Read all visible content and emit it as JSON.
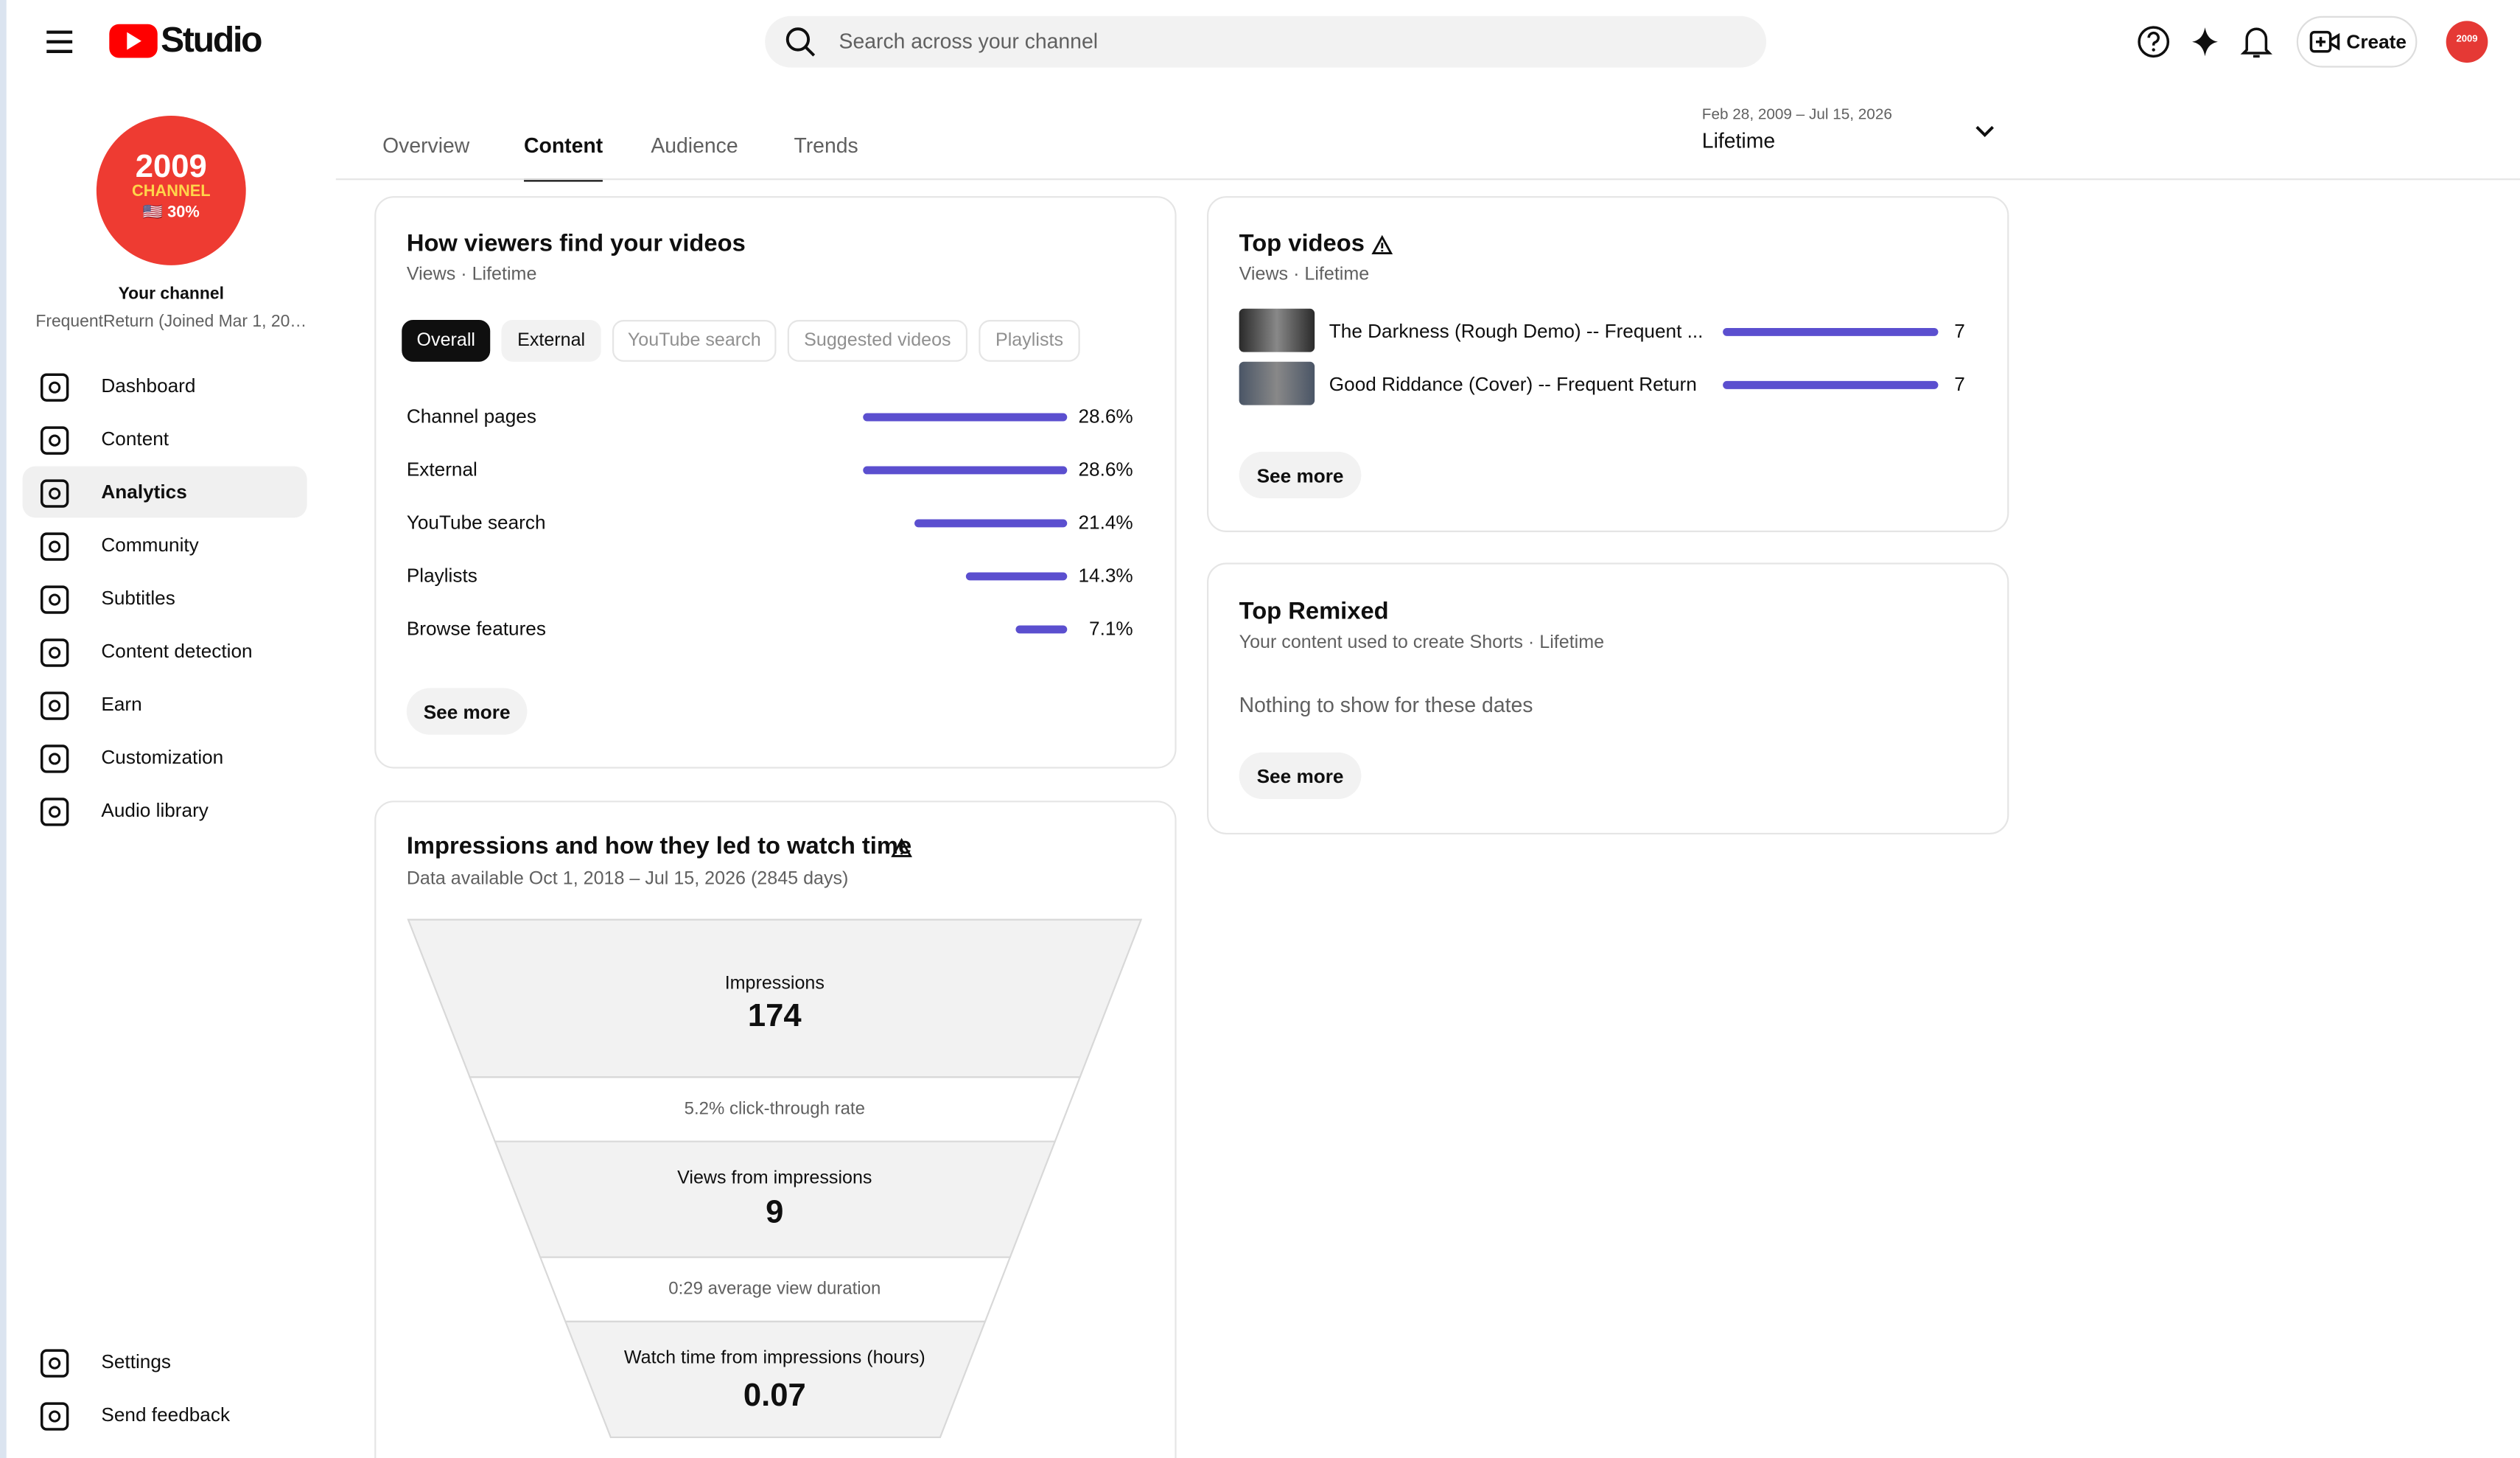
{
  "header": {
    "logo": "Studio",
    "search_placeholder": "Search across your channel",
    "create": "Create"
  },
  "sidebar": {
    "avatar": [
      "2009",
      "CHANNEL",
      "🇺🇸 30%"
    ],
    "title": "Your channel",
    "subtitle": "FrequentReturn (Joined Mar 1, 20…",
    "nav": [
      "Dashboard",
      "Content",
      "Analytics",
      "Community",
      "Subtitles",
      "Content detection",
      "Earn",
      "Customization",
      "Audio library"
    ],
    "active_nav": "Analytics",
    "footer": [
      "Settings",
      "Send feedback"
    ]
  },
  "tabs": [
    "Overview",
    "Content",
    "Audience",
    "Trends"
  ],
  "active_tab": "Content",
  "date_range": {
    "range": "Feb 28, 2009 – Jul 15, 2026",
    "label": "Lifetime"
  },
  "traffic_card": {
    "title": "How viewers find your videos",
    "subtitle": "Views · Lifetime",
    "chips": [
      "Overall",
      "External",
      "YouTube search",
      "Suggested videos",
      "Playlists"
    ],
    "rows": [
      {
        "name": "Channel pages",
        "value": 28.6,
        "value_label": "28.6%"
      },
      {
        "name": "External",
        "value": 28.6,
        "value_label": "28.6%"
      },
      {
        "name": "YouTube search",
        "value": 21.4,
        "value_label": "21.4%"
      },
      {
        "name": "Playlists",
        "value": 14.3,
        "value_label": "14.3%"
      },
      {
        "name": "Browse features",
        "value": 7.1,
        "value_label": "7.1%"
      }
    ],
    "button": "See more"
  },
  "funnel_card": {
    "title": "Impressions and how they led to watch time",
    "subtitle": "Data available Oct 1, 2018 – Jul 15, 2026 (2845 days)",
    "impressions": {
      "label": "Impressions",
      "value": 174
    },
    "ctr": "5.2% click-through rate",
    "views": {
      "label": "Views from impressions",
      "value": 9
    },
    "duration": "0:29 average view duration",
    "watch_time": {
      "label": "Watch time from impressions (hours)",
      "value": 0.07
    }
  },
  "top_videos": {
    "title": "Top videos",
    "subtitle": "Views · Lifetime",
    "rows": [
      {
        "title": "The Darkness (Rough Demo) -- Frequent ...",
        "value": 7
      },
      {
        "title": "Good Riddance (Cover) -- Frequent Return",
        "value": 7
      }
    ],
    "button": "See more"
  },
  "top_remixed": {
    "title": "Top Remixed",
    "subtitle": "Your content used to create Shorts · Lifetime",
    "empty": "Nothing to show for these dates",
    "button": "See more"
  }
}
